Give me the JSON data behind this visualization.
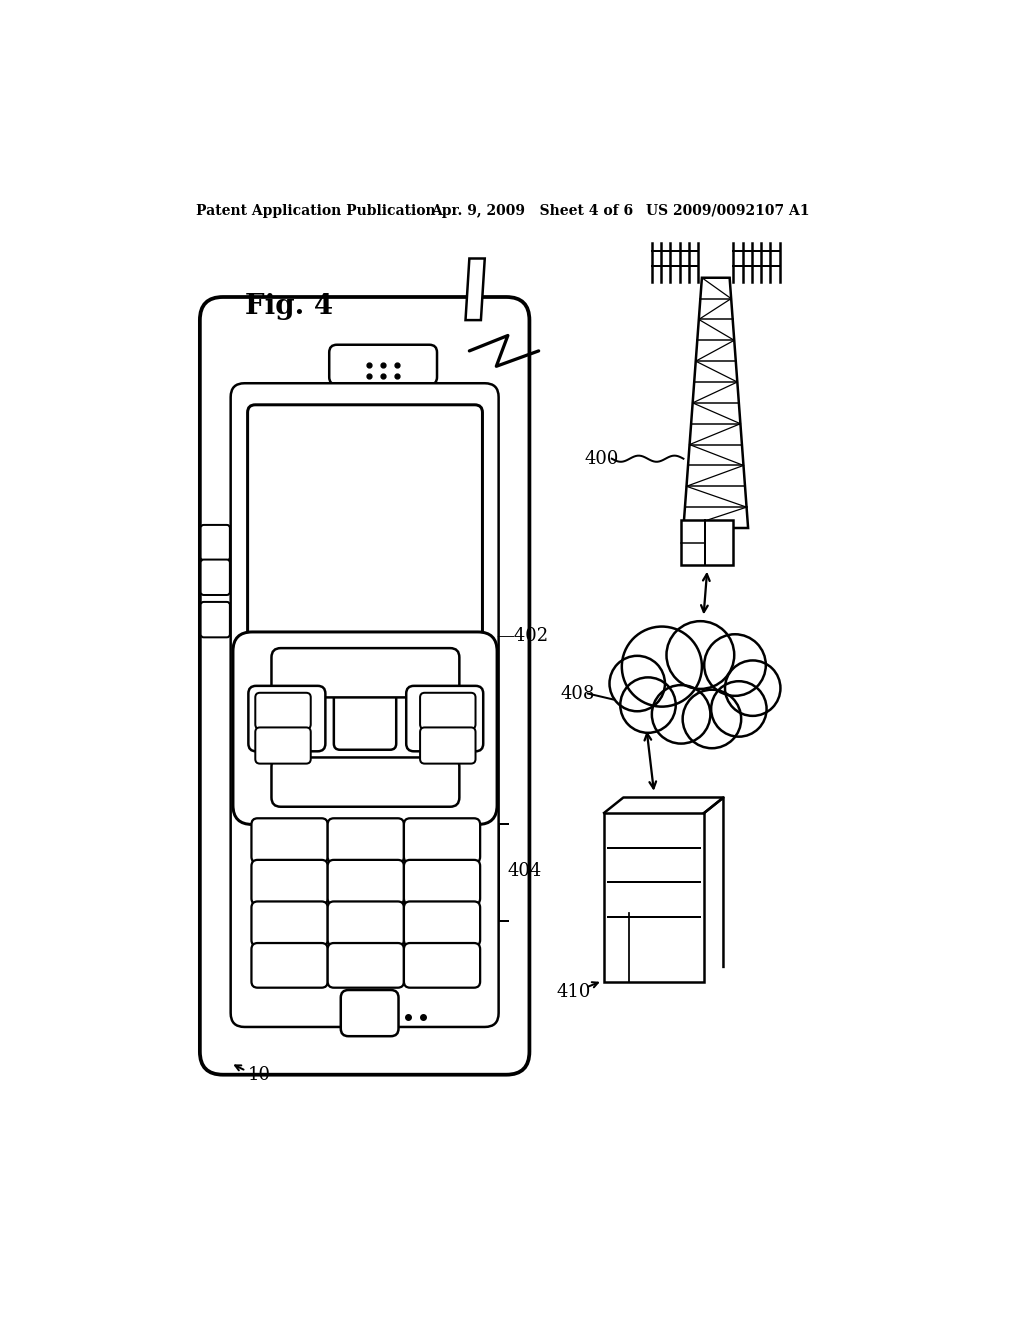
{
  "title_left": "Patent Application Publication",
  "title_mid": "Apr. 9, 2009   Sheet 4 of 6",
  "title_right": "US 2009/0092107 A1",
  "fig_label": "Fig. 4",
  "bg_color": "#ffffff",
  "line_color": "#000000",
  "lw": 1.8
}
